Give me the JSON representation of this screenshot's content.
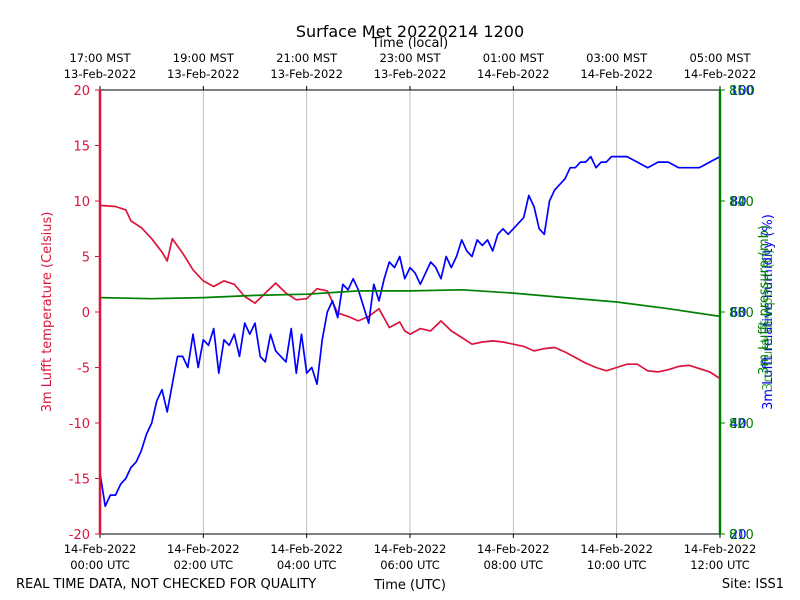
{
  "chart_data": {
    "type": "line",
    "title": "Surface Met 20220214 1200",
    "xlabel_top": "Time (local)",
    "xlabel": "Time (UTC)",
    "footer_left": "REAL TIME DATA, NOT CHECKED FOR QUALITY",
    "footer_right": "Site: ISS1",
    "xlim_hours_utc": [
      0,
      12
    ],
    "grid": true,
    "x_ticks_bottom": [
      {
        "hour": 0,
        "line1": "14-Feb-2022",
        "line2": "00:00 UTC"
      },
      {
        "hour": 2,
        "line1": "14-Feb-2022",
        "line2": "02:00 UTC"
      },
      {
        "hour": 4,
        "line1": "14-Feb-2022",
        "line2": "04:00 UTC"
      },
      {
        "hour": 6,
        "line1": "14-Feb-2022",
        "line2": "06:00 UTC"
      },
      {
        "hour": 8,
        "line1": "14-Feb-2022",
        "line2": "08:00 UTC"
      },
      {
        "hour": 10,
        "line1": "14-Feb-2022",
        "line2": "10:00 UTC"
      },
      {
        "hour": 12,
        "line1": "14-Feb-2022",
        "line2": "12:00 UTC"
      }
    ],
    "x_ticks_top": [
      {
        "hour": 0,
        "line1": "17:00 MST",
        "line2": "13-Feb-2022"
      },
      {
        "hour": 2,
        "line1": "19:00 MST",
        "line2": "13-Feb-2022"
      },
      {
        "hour": 4,
        "line1": "21:00 MST",
        "line2": "13-Feb-2022"
      },
      {
        "hour": 6,
        "line1": "23:00 MST",
        "line2": "13-Feb-2022"
      },
      {
        "hour": 8,
        "line1": "01:00 MST",
        "line2": "14-Feb-2022"
      },
      {
        "hour": 10,
        "line1": "03:00 MST",
        "line2": "14-Feb-2022"
      },
      {
        "hour": 12,
        "line1": "05:00 MST",
        "line2": "14-Feb-2022"
      }
    ],
    "axes": {
      "left": {
        "label": "3m Lufft temperature (Celsius)",
        "color": "#dc143c",
        "ylim": [
          -20,
          20
        ],
        "ticks": [
          -20,
          -15,
          -10,
          -5,
          0,
          5,
          10,
          15,
          20
        ]
      },
      "right_rh": {
        "label": "3m Lufft relative humidity (%)",
        "color": "#0000ff",
        "ylim": [
          20,
          100
        ],
        "ticks": [
          20,
          40,
          60,
          80,
          100
        ]
      },
      "right_p": {
        "label": "3m Lufft pressure (mb)",
        "color": "#008000",
        "ylim": [
          810,
          850
        ],
        "ticks": [
          810,
          820,
          830,
          840,
          850
        ]
      },
      "right_other": {
        "label": "3m Lufft dewpoint (C)",
        "color": "#008000",
        "ylim": [
          0,
          160
        ],
        "ticks": [
          0,
          40,
          80,
          120,
          160
        ]
      }
    },
    "series": [
      {
        "name": "temperature",
        "axis": "left",
        "color": "#dc143c",
        "x": [
          0,
          0.3,
          0.5,
          0.6,
          0.8,
          1.0,
          1.2,
          1.3,
          1.4,
          1.6,
          1.8,
          2.0,
          2.2,
          2.4,
          2.6,
          2.8,
          3.0,
          3.2,
          3.4,
          3.6,
          3.8,
          4.0,
          4.2,
          4.4,
          4.6,
          4.8,
          5.0,
          5.2,
          5.4,
          5.6,
          5.8,
          5.9,
          6.0,
          6.2,
          6.4,
          6.6,
          6.8,
          7.0,
          7.2,
          7.4,
          7.6,
          7.8,
          8.0,
          8.2,
          8.4,
          8.6,
          8.8,
          9.0,
          9.2,
          9.4,
          9.6,
          9.8,
          10.0,
          10.2,
          10.4,
          10.6,
          10.8,
          11.0,
          11.2,
          11.4,
          11.6,
          11.8,
          12.0
        ],
        "values": [
          9.6,
          9.5,
          9.2,
          8.2,
          7.6,
          6.6,
          5.4,
          4.6,
          6.6,
          5.3,
          3.8,
          2.8,
          2.3,
          2.8,
          2.5,
          1.4,
          0.8,
          1.7,
          2.6,
          1.7,
          1.1,
          1.2,
          2.1,
          1.9,
          -0.1,
          -0.4,
          -0.8,
          -0.4,
          0.3,
          -1.4,
          -0.9,
          -1.7,
          -2.0,
          -1.5,
          -1.7,
          -0.8,
          -1.7,
          -2.3,
          -2.9,
          -2.7,
          -2.6,
          -2.7,
          -2.9,
          -3.1,
          -3.5,
          -3.3,
          -3.2,
          -3.6,
          -4.1,
          -4.6,
          -5.0,
          -5.3,
          -5.0,
          -4.7,
          -4.7,
          -5.3,
          -5.4,
          -5.2,
          -4.9,
          -4.8,
          -5.1,
          -5.4,
          -6.0
        ]
      },
      {
        "name": "relative humidity",
        "axis": "right_rh",
        "color": "#0000ff",
        "x": [
          0,
          0.1,
          0.2,
          0.3,
          0.4,
          0.5,
          0.6,
          0.7,
          0.8,
          0.9,
          1.0,
          1.1,
          1.2,
          1.3,
          1.4,
          1.5,
          1.6,
          1.7,
          1.8,
          1.9,
          2.0,
          2.1,
          2.2,
          2.3,
          2.4,
          2.5,
          2.6,
          2.7,
          2.8,
          2.9,
          3.0,
          3.1,
          3.2,
          3.3,
          3.4,
          3.5,
          3.6,
          3.7,
          3.8,
          3.9,
          4.0,
          4.1,
          4.2,
          4.3,
          4.4,
          4.5,
          4.6,
          4.7,
          4.8,
          4.9,
          5.0,
          5.1,
          5.2,
          5.3,
          5.4,
          5.5,
          5.6,
          5.7,
          5.8,
          5.9,
          6.0,
          6.1,
          6.2,
          6.3,
          6.4,
          6.5,
          6.6,
          6.7,
          6.8,
          6.9,
          7.0,
          7.1,
          7.2,
          7.3,
          7.4,
          7.5,
          7.6,
          7.7,
          7.8,
          7.9,
          8.0,
          8.1,
          8.2,
          8.3,
          8.4,
          8.5,
          8.6,
          8.7,
          8.8,
          8.9,
          9.0,
          9.1,
          9.2,
          9.3,
          9.4,
          9.5,
          9.6,
          9.7,
          9.8,
          9.9,
          10.0,
          10.2,
          10.4,
          10.6,
          10.8,
          11.0,
          11.2,
          11.4,
          11.6,
          11.8,
          12.0
        ],
        "values": [
          31,
          25,
          27,
          27,
          29,
          30,
          32,
          33,
          35,
          38,
          40,
          44,
          46,
          42,
          47,
          52,
          52,
          50,
          56,
          50,
          55,
          54,
          57,
          49,
          55,
          54,
          56,
          52,
          58,
          56,
          58,
          52,
          51,
          56,
          53,
          52,
          51,
          57,
          49,
          56,
          49,
          50,
          47,
          55,
          60,
          62,
          59,
          65,
          64,
          66,
          64,
          61,
          58,
          65,
          62,
          66,
          69,
          68,
          70,
          66,
          68,
          67,
          65,
          67,
          69,
          68,
          66,
          70,
          68,
          70,
          73,
          71,
          70,
          73,
          72,
          73,
          71,
          74,
          75,
          74,
          75,
          76,
          77,
          81,
          79,
          75,
          74,
          80,
          82,
          83,
          84,
          86,
          86,
          87,
          87,
          88,
          86,
          87,
          87,
          88,
          88,
          88,
          87,
          86,
          87,
          87,
          86,
          86,
          86,
          87,
          88
        ]
      },
      {
        "name": "pressure",
        "axis": "right_p",
        "color": "#008000",
        "x": [
          0,
          1,
          2,
          3,
          4,
          5,
          6,
          7,
          8,
          9,
          10,
          11,
          12
        ],
        "values": [
          831.3,
          831.2,
          831.3,
          831.5,
          831.6,
          831.9,
          831.9,
          832.0,
          831.7,
          831.3,
          830.9,
          830.3,
          829.6
        ]
      }
    ]
  }
}
